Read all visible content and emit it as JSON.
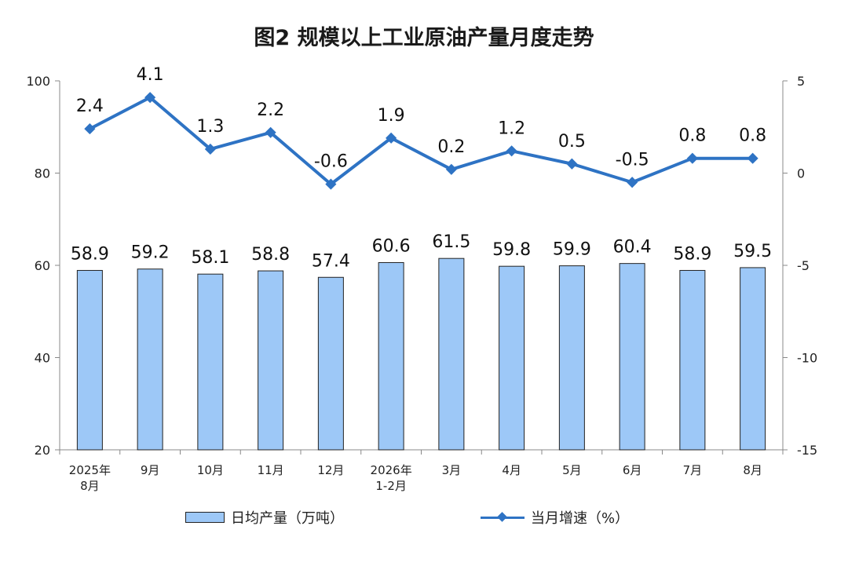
{
  "chart_data": {
    "type": "bar+line",
    "title": "图2  规模以上工业原油产量月度走势",
    "categories": [
      [
        "2025年",
        "8月"
      ],
      [
        "9月"
      ],
      [
        "10月"
      ],
      [
        "11月"
      ],
      [
        "12月"
      ],
      [
        "2026年",
        "1-2月"
      ],
      [
        "3月"
      ],
      [
        "4月"
      ],
      [
        "5月"
      ],
      [
        "6月"
      ],
      [
        "7月"
      ],
      [
        "8月"
      ]
    ],
    "series": [
      {
        "name": "日均产量（万吨）",
        "type": "bar",
        "axis": "left",
        "color": "#9dc8f7",
        "values": [
          58.9,
          59.2,
          58.1,
          58.8,
          57.4,
          60.6,
          61.5,
          59.8,
          59.9,
          60.4,
          58.9,
          59.5
        ],
        "labels": [
          "58.9",
          "59.2",
          "58.1",
          "58.8",
          "57.4",
          "60.6",
          "61.5",
          "59.8",
          "59.9",
          "60.4",
          "58.9",
          "59.5"
        ]
      },
      {
        "name": "当月增速（%）",
        "type": "line",
        "axis": "right",
        "color": "#2e73c4",
        "values": [
          2.4,
          4.1,
          1.3,
          2.2,
          -0.6,
          1.9,
          0.2,
          1.2,
          0.5,
          -0.5,
          0.8,
          0.8
        ],
        "labels": [
          "2.4",
          "4.1",
          "1.3",
          "2.2",
          "-0.6",
          "1.9",
          "0.2",
          "1.2",
          "0.5",
          "-0.5",
          "0.8",
          "0.8"
        ]
      }
    ],
    "y_left": {
      "min": 20,
      "max": 100,
      "ticks": [
        "100",
        "80",
        "60",
        "40",
        "20"
      ]
    },
    "y_right": {
      "min": -15,
      "max": 5,
      "ticks": [
        "5",
        "0",
        "-5",
        "-10",
        "-15"
      ]
    },
    "grid": false,
    "legend_position": "bottom"
  }
}
